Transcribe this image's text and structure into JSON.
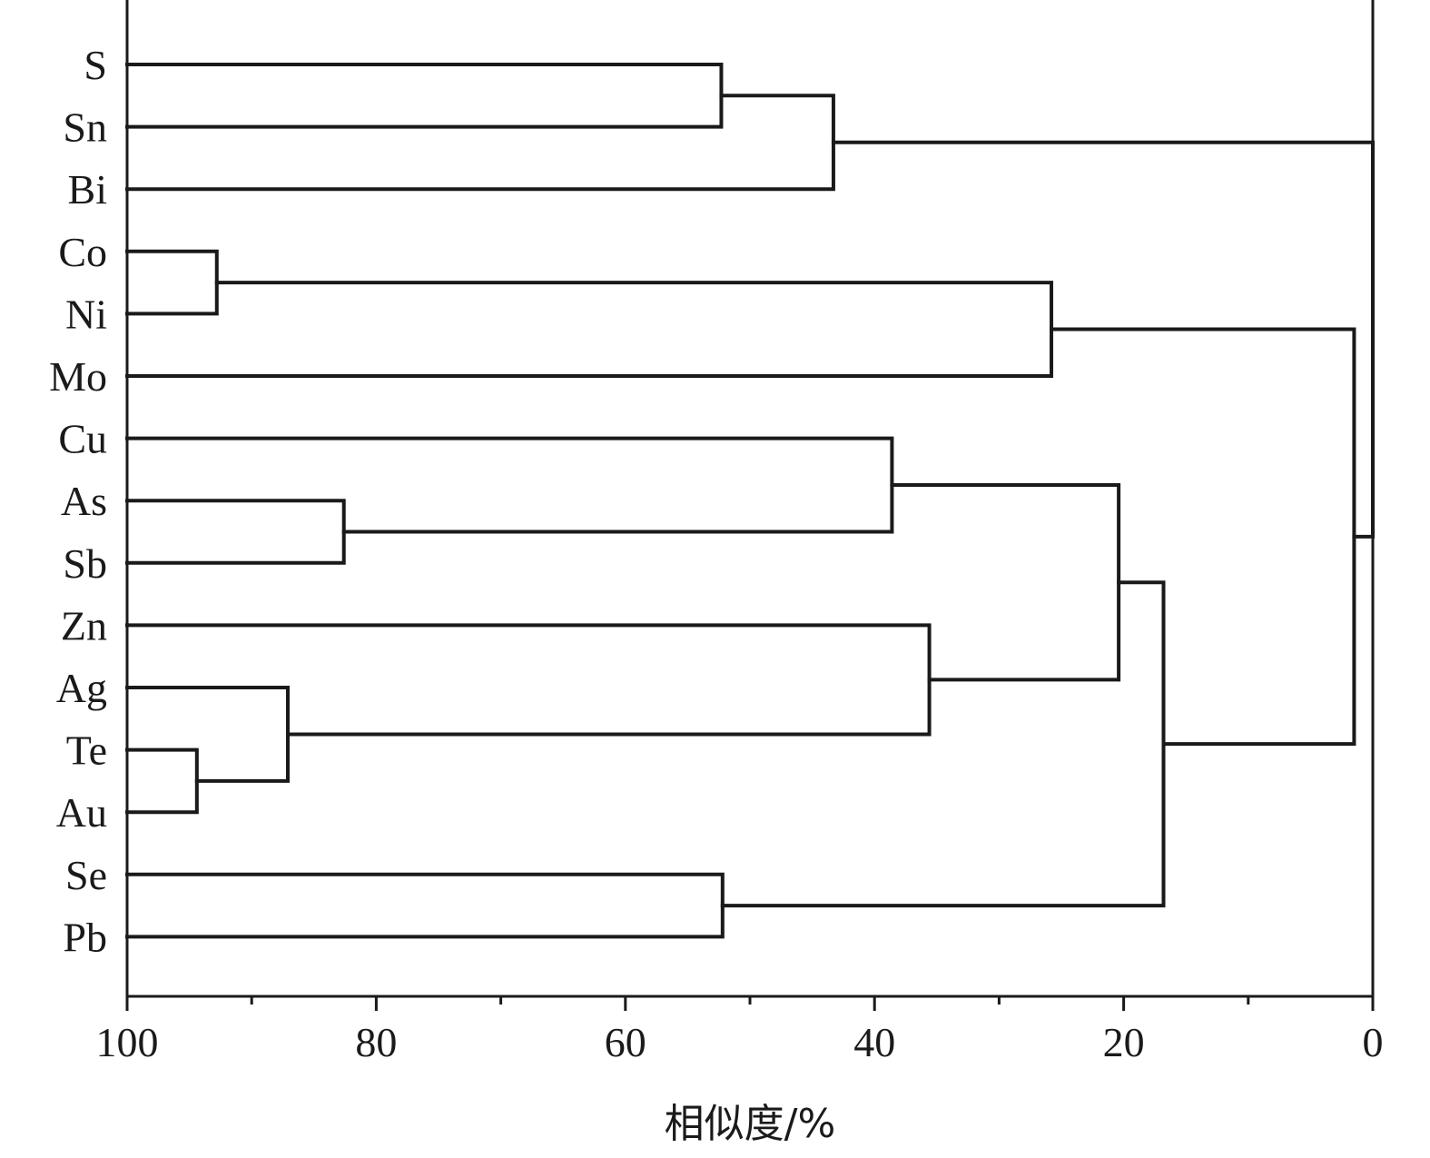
{
  "chart_data": {
    "type": "dendrogram",
    "orientation": "horizontal",
    "xlabel": "相似度/%",
    "xlim": [
      100,
      0
    ],
    "x_ticks": [
      100,
      80,
      60,
      40,
      20,
      0
    ],
    "x_minor_ticks": [
      90,
      70,
      50,
      30,
      10
    ],
    "leaves": [
      "S",
      "Sn",
      "Bi",
      "Co",
      "Ni",
      "Mo",
      "Cu",
      "As",
      "Sb",
      "Zn",
      "Ag",
      "Te",
      "Au",
      "Se",
      "Pb"
    ],
    "merges": [
      {
        "id": "m1",
        "children": [
          "S",
          "Sn"
        ],
        "similarity": 52.3
      },
      {
        "id": "m2",
        "children": [
          "m1",
          "Bi"
        ],
        "similarity": 43.3
      },
      {
        "id": "m3",
        "children": [
          "Co",
          "Ni"
        ],
        "similarity": 92.8
      },
      {
        "id": "m4",
        "children": [
          "m3",
          "Mo"
        ],
        "similarity": 25.8
      },
      {
        "id": "m5",
        "children": [
          "As",
          "Sb"
        ],
        "similarity": 82.6
      },
      {
        "id": "m6",
        "children": [
          "Cu",
          "m5"
        ],
        "similarity": 38.6
      },
      {
        "id": "m7",
        "children": [
          "Te",
          "Au"
        ],
        "similarity": 94.4
      },
      {
        "id": "m8",
        "children": [
          "Ag",
          "m7"
        ],
        "similarity": 87.1
      },
      {
        "id": "m9",
        "children": [
          "Zn",
          "m8"
        ],
        "similarity": 35.6
      },
      {
        "id": "m10",
        "children": [
          "m6",
          "m9"
        ],
        "similarity": 20.4
      },
      {
        "id": "m11",
        "children": [
          "Se",
          "Pb"
        ],
        "similarity": 52.2
      },
      {
        "id": "m12",
        "children": [
          "m10",
          "m11"
        ],
        "similarity": 16.8
      },
      {
        "id": "m13",
        "children": [
          "m4",
          "m12"
        ],
        "similarity": 1.5
      },
      {
        "id": "m14",
        "children": [
          "m2",
          "m13"
        ],
        "similarity": 0.0
      }
    ],
    "grid": false,
    "frame": "left-right-bottom"
  }
}
